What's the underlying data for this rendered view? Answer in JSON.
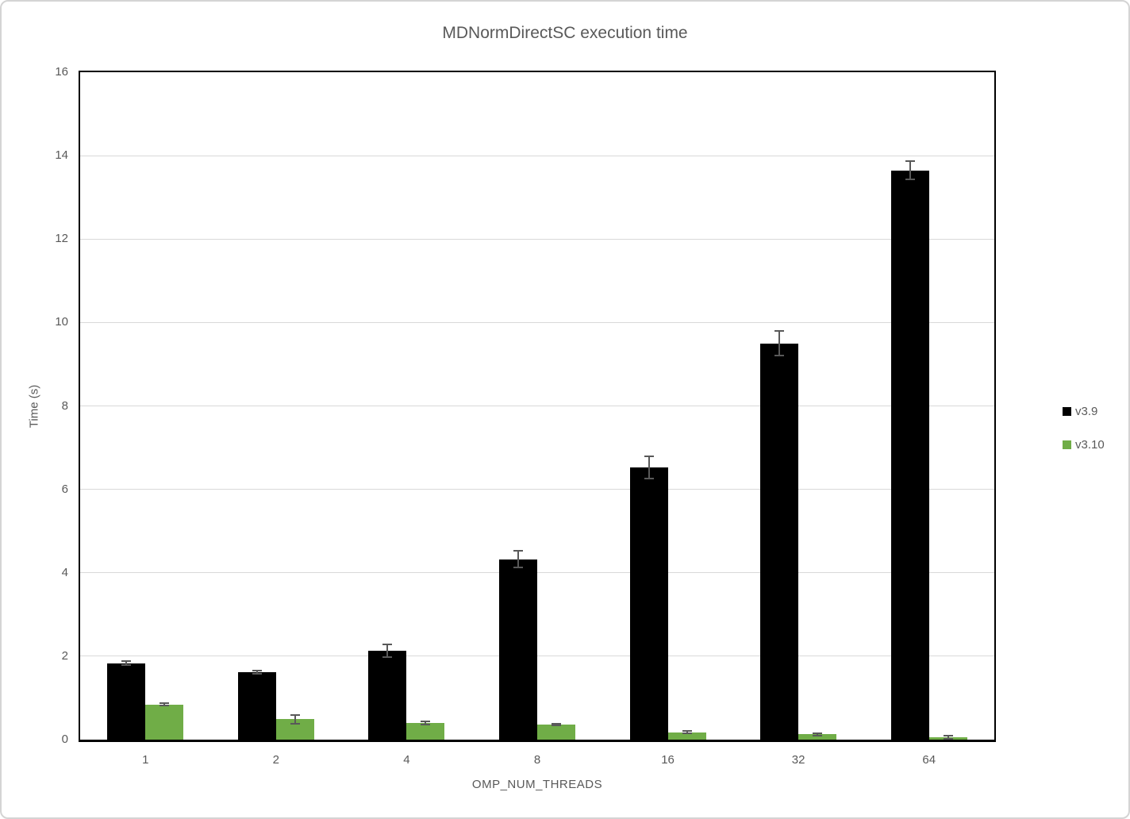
{
  "chart_data": {
    "type": "bar",
    "title": "MDNormDirectSC execution time",
    "xlabel": "OMP_NUM_THREADS",
    "ylabel": "Time (s)",
    "categories": [
      "1",
      "2",
      "4",
      "8",
      "16",
      "32",
      "64"
    ],
    "series": [
      {
        "name": "v3.9",
        "color": "#000000",
        "values": [
          1.83,
          1.62,
          2.13,
          4.32,
          6.53,
          9.5,
          13.65
        ],
        "errors": [
          0.05,
          0.04,
          0.16,
          0.2,
          0.27,
          0.3,
          0.22
        ]
      },
      {
        "name": "v3.10",
        "color": "#70AD47",
        "values": [
          0.84,
          0.49,
          0.4,
          0.36,
          0.18,
          0.13,
          0.06
        ],
        "errors": [
          0.03,
          0.1,
          0.04,
          0.02,
          0.03,
          0.03,
          0.04
        ]
      }
    ],
    "ylim": [
      0,
      16
    ],
    "yticks": [
      0,
      2,
      4,
      6,
      8,
      10,
      12,
      14,
      16
    ],
    "grid": true,
    "legend_position": "right",
    "error_bar_color": "#595959",
    "gridline_color": "#D9D9D9",
    "text_color": "#595959"
  }
}
